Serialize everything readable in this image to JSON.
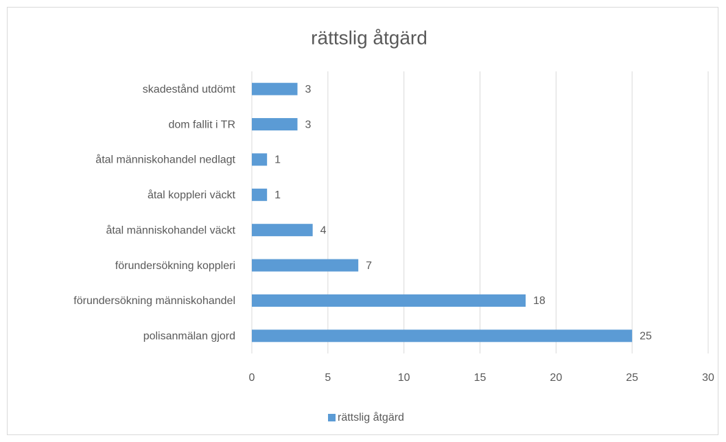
{
  "chart_data": {
    "type": "barh",
    "title": "rättslig åtgärd",
    "categories": [
      "skadestånd utdömt",
      "dom fallit i TR",
      "åtal människohandel nedlagt",
      "åtal koppleri väckt",
      "åtal människohandel väckt",
      "förundersökning koppleri",
      "förundersökning människohandel",
      "polisanmälan gjord"
    ],
    "series": [
      {
        "name": "rättslig åtgärd",
        "color": "#5b9bd5",
        "values": [
          3,
          3,
          1,
          1,
          4,
          7,
          18,
          25
        ]
      }
    ],
    "xlim": [
      0,
      30
    ],
    "xticks": [
      0,
      5,
      10,
      15,
      20,
      25,
      30
    ],
    "grid": true,
    "legend": "bottom"
  }
}
